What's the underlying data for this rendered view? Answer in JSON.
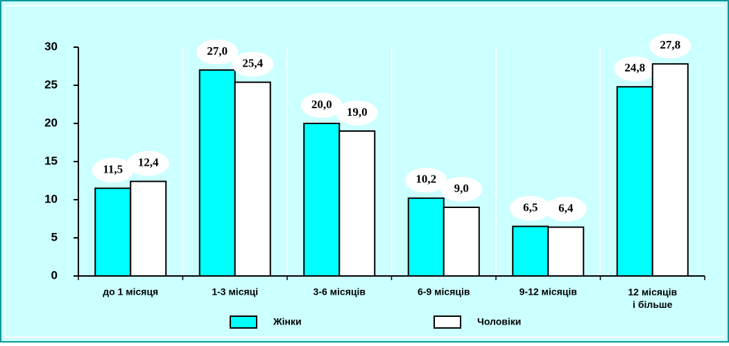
{
  "chart_data": {
    "type": "bar",
    "categories": [
      "до 1 місяця",
      "1-3 місяці",
      "3-6 місяців",
      "6-9 місяців",
      "9-12 місяців",
      "12 місяців\nі більше"
    ],
    "series": [
      {
        "name": "Жінки",
        "color": "#00ffff",
        "values": [
          11.5,
          27.0,
          20.0,
          10.2,
          6.5,
          24.8
        ],
        "value_labels": [
          "11,5",
          "27,0",
          "20,0",
          "10,2",
          "6,5",
          "24,8"
        ]
      },
      {
        "name": "Чоловіки",
        "color": "#ffffff",
        "values": [
          12.4,
          25.4,
          19.0,
          9.0,
          6.4,
          27.8
        ],
        "value_labels": [
          "12,4",
          "25,4",
          "19,0",
          "9,0",
          "6,4",
          "27,8"
        ]
      }
    ],
    "ylim": [
      0,
      30
    ],
    "yticks": [
      0,
      5,
      10,
      15,
      20,
      25,
      30
    ],
    "grid": true,
    "legend": "bottom"
  }
}
